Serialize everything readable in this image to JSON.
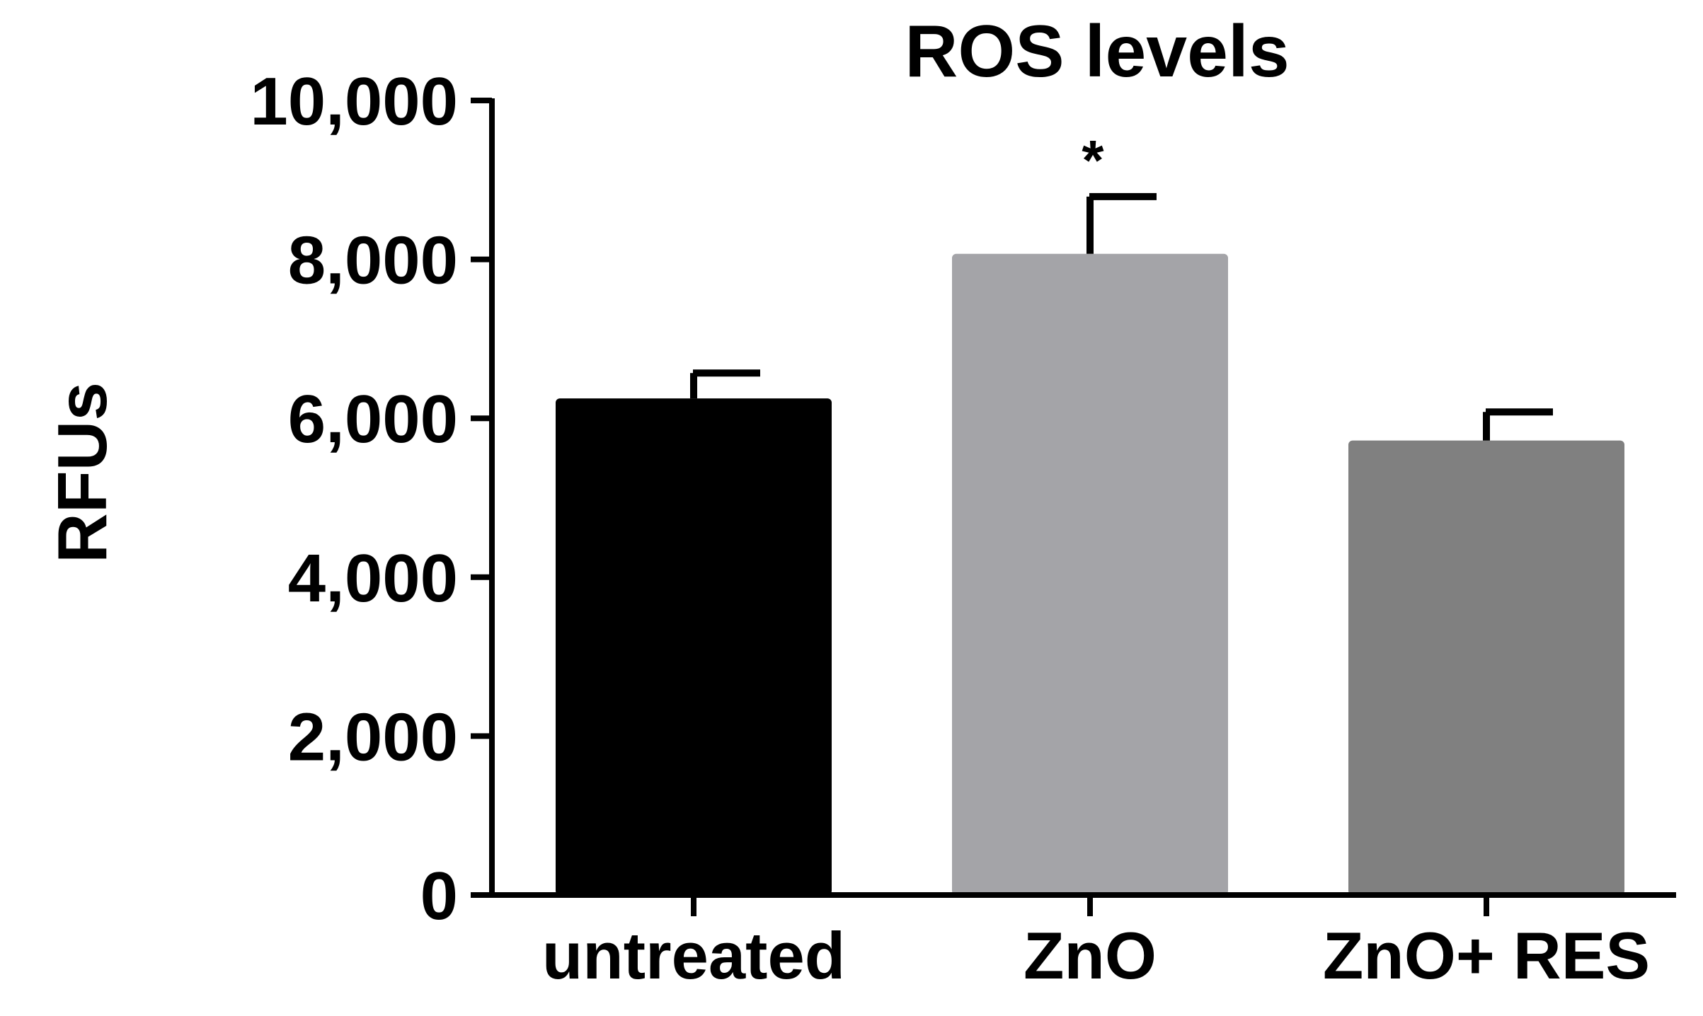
{
  "chart_data": {
    "type": "bar",
    "title": "ROS levels",
    "xlabel": "",
    "ylabel": "RFUs",
    "ylim": [
      0,
      10000
    ],
    "yticks": [
      0,
      2000,
      4000,
      6000,
      8000,
      10000
    ],
    "ytick_labels": [
      "0",
      "2,000",
      "4,000",
      "6,000",
      "8,000",
      "10,000"
    ],
    "categories": [
      "untreated",
      "ZnO",
      "ZnO+ RES"
    ],
    "values": [
      6250,
      8070,
      5720
    ],
    "errors": [
      320,
      720,
      360
    ],
    "colors": [
      "#000000",
      "#a4a4a8",
      "#808080"
    ],
    "annotations": [
      "",
      "*",
      ""
    ],
    "grid": false,
    "legend": "none"
  }
}
